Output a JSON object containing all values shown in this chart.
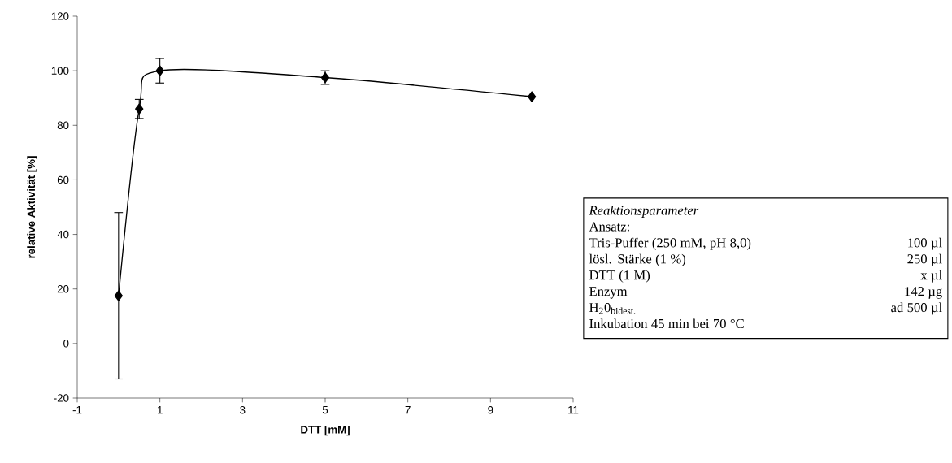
{
  "chart_data": {
    "type": "line",
    "x": [
      0,
      0.5,
      1,
      5,
      10
    ],
    "series": [
      {
        "color": "#000000",
        "values": [
          17.5,
          86,
          100,
          97.5,
          90.5
        ],
        "errors": [
          30.5,
          3.5,
          4.5,
          2.5,
          null
        ]
      }
    ],
    "marker": "diamond",
    "line_style": "solid",
    "grid": false,
    "xlabel": "DTT [mM]",
    "ylabel": "relative Aktivität [%]",
    "xlim": [
      -1,
      11
    ],
    "xticks": [
      -1,
      1,
      3,
      5,
      7,
      9,
      11
    ],
    "ylim": [
      -20,
      120
    ],
    "yticks": [
      -20,
      0,
      20,
      40,
      60,
      80,
      100,
      120
    ],
    "annotations": [
      "Reaktionsparameter",
      "Ansatz:",
      "Tris-Puffer (250 mM, pH 8,0)",
      "100 µl",
      "lösl. Stärke (1 %)",
      "250 µl",
      "DTT (1 M)",
      "x µl",
      "Enzym",
      "142 µg",
      "H$_{2}$0$_{bidest.}$",
      "ad 500 µl",
      "Inkubation 45 min bei 70 °C"
    ]
  }
}
